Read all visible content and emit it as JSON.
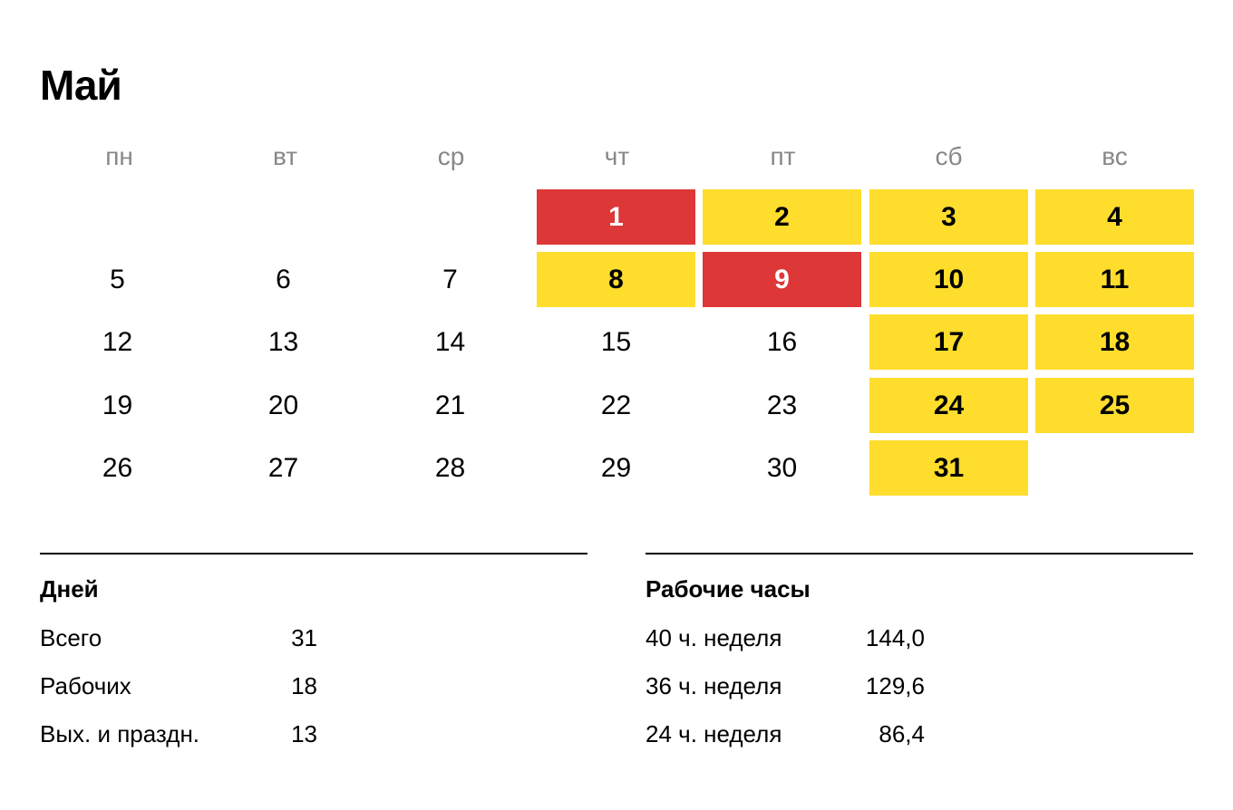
{
  "month_title": "Май",
  "weekdays": [
    "пн",
    "вт",
    "ср",
    "чт",
    "пт",
    "сб",
    "вс"
  ],
  "colors": {
    "weekend": "#ffdd2d",
    "holiday": "#dd3737"
  },
  "weeks": [
    [
      null,
      null,
      null,
      {
        "day": "1",
        "type": "holiday"
      },
      {
        "day": "2",
        "type": "weekend"
      },
      {
        "day": "3",
        "type": "weekend"
      },
      {
        "day": "4",
        "type": "weekend"
      }
    ],
    [
      {
        "day": "5",
        "type": "work"
      },
      {
        "day": "6",
        "type": "work"
      },
      {
        "day": "7",
        "type": "work"
      },
      {
        "day": "8",
        "type": "weekend"
      },
      {
        "day": "9",
        "type": "holiday"
      },
      {
        "day": "10",
        "type": "weekend"
      },
      {
        "day": "11",
        "type": "weekend"
      }
    ],
    [
      {
        "day": "12",
        "type": "work"
      },
      {
        "day": "13",
        "type": "work"
      },
      {
        "day": "14",
        "type": "work"
      },
      {
        "day": "15",
        "type": "work"
      },
      {
        "day": "16",
        "type": "work"
      },
      {
        "day": "17",
        "type": "weekend"
      },
      {
        "day": "18",
        "type": "weekend"
      }
    ],
    [
      {
        "day": "19",
        "type": "work"
      },
      {
        "day": "20",
        "type": "work"
      },
      {
        "day": "21",
        "type": "work"
      },
      {
        "day": "22",
        "type": "work"
      },
      {
        "day": "23",
        "type": "work"
      },
      {
        "day": "24",
        "type": "weekend"
      },
      {
        "day": "25",
        "type": "weekend"
      }
    ],
    [
      {
        "day": "26",
        "type": "work"
      },
      {
        "day": "27",
        "type": "work"
      },
      {
        "day": "28",
        "type": "work"
      },
      {
        "day": "29",
        "type": "work"
      },
      {
        "day": "30",
        "type": "work"
      },
      {
        "day": "31",
        "type": "weekend"
      },
      null
    ]
  ],
  "days_section": {
    "title": "Дней",
    "rows": [
      {
        "label": "Всего",
        "value": "31"
      },
      {
        "label": "Рабочих",
        "value": "18"
      },
      {
        "label": "Вых. и праздн.",
        "value": "13"
      }
    ]
  },
  "hours_section": {
    "title": "Рабочие часы",
    "rows": [
      {
        "label": "40 ч. неделя",
        "value": "144,0"
      },
      {
        "label": "36 ч. неделя",
        "value": "129,6"
      },
      {
        "label": "24 ч. неделя",
        "value": "86,4"
      }
    ]
  }
}
